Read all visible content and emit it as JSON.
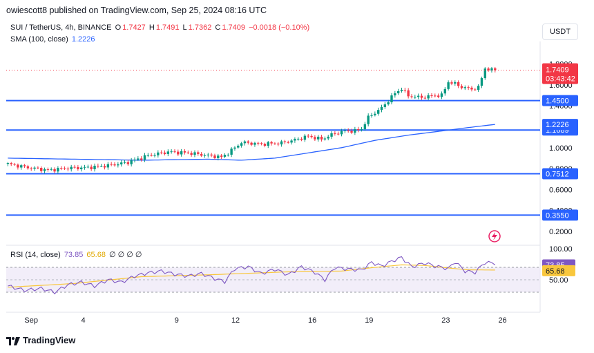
{
  "header": {
    "publisher_line": "owiescott8 published on TradingView.com, Sep 25, 2024 08:16 UTC"
  },
  "legend": {
    "symbol": "SUI / TetherUS, 4h, BINANCE",
    "o_label": "O",
    "o_value": "1.7427",
    "h_label": "H",
    "h_value": "1.7491",
    "l_label": "L",
    "l_value": "1.7362",
    "c_label": "C",
    "c_value": "1.7409",
    "change": "−0.0018 (−0.10%)",
    "sma_label": "SMA (100, close)",
    "sma_value": "1.2226",
    "rsi_label": "RSI (14, close)",
    "rsi_value": "73.85",
    "rsi_ma_value": "65.68",
    "rsi_extra": "∅ ∅ ∅ ∅"
  },
  "currency_button": "USDT",
  "footer": {
    "brand": "TradingView"
  },
  "colors": {
    "up": "#089981",
    "down": "#f23645",
    "level": "#2962ff",
    "sma": "#2962ff",
    "rsi": "#7e57c2",
    "rsi_ma": "#f9c73d",
    "rsi_band": "#ede7f6"
  },
  "chart_data": {
    "type": "candlestick",
    "price_axis": {
      "ticks": [
        "0.2000",
        "0.4000",
        "0.6000",
        "0.8000",
        "1.0000",
        "1.2000",
        "1.4000",
        "1.6000",
        "1.8000"
      ],
      "tick_values": [
        0.2,
        0.4,
        0.6,
        0.8,
        1.0,
        1.2,
        1.4,
        1.6,
        1.8
      ],
      "range": [
        0.1,
        1.95
      ]
    },
    "x_axis": {
      "labels": [
        "Sep",
        "4",
        "9",
        "12",
        "16",
        "19",
        "23",
        "26"
      ],
      "label_bar_index": [
        6,
        23,
        51,
        68,
        91,
        108,
        131,
        148
      ],
      "bars_total": 160
    },
    "horizontal_levels": [
      {
        "value": 1.45,
        "label": "1.4500"
      },
      {
        "value": 1.1689,
        "label": "1.1689"
      },
      {
        "value": 0.7512,
        "label": "0.7512"
      },
      {
        "value": 0.355,
        "label": "0.3550"
      }
    ],
    "price_labels": [
      {
        "value": 1.7409,
        "label": "1.7409",
        "sublabel": "03:43:42",
        "color": "#f23645"
      },
      {
        "value": 1.2226,
        "label": "1.2226",
        "color": "#2962ff"
      }
    ],
    "close_anchors": [
      [
        0,
        0.845
      ],
      [
        6,
        0.81
      ],
      [
        12,
        0.785
      ],
      [
        18,
        0.805
      ],
      [
        24,
        0.81
      ],
      [
        30,
        0.83
      ],
      [
        36,
        0.86
      ],
      [
        42,
        0.925
      ],
      [
        48,
        0.96
      ],
      [
        54,
        0.95
      ],
      [
        60,
        0.925
      ],
      [
        64,
        0.91
      ],
      [
        66,
        0.95
      ],
      [
        70,
        1.05
      ],
      [
        76,
        1.035
      ],
      [
        82,
        1.045
      ],
      [
        86,
        1.075
      ],
      [
        90,
        1.11
      ],
      [
        94,
        1.08
      ],
      [
        97,
        1.125
      ],
      [
        101,
        1.16
      ],
      [
        104,
        1.16
      ],
      [
        106,
        1.18
      ],
      [
        108,
        1.29
      ],
      [
        112,
        1.38
      ],
      [
        116,
        1.52
      ],
      [
        118,
        1.565
      ],
      [
        120,
        1.495
      ],
      [
        124,
        1.48
      ],
      [
        128,
        1.5
      ],
      [
        130,
        1.5
      ],
      [
        132,
        1.63
      ],
      [
        134,
        1.61
      ],
      [
        136,
        1.58
      ],
      [
        139,
        1.56
      ],
      [
        141,
        1.575
      ],
      [
        143,
        1.76
      ],
      [
        145,
        1.74
      ],
      [
        146,
        1.7409
      ]
    ],
    "sma_anchors": [
      [
        0,
        0.9
      ],
      [
        20,
        0.89
      ],
      [
        40,
        0.88
      ],
      [
        60,
        0.89
      ],
      [
        70,
        0.88
      ],
      [
        80,
        0.9
      ],
      [
        90,
        0.95
      ],
      [
        100,
        1.0
      ],
      [
        110,
        1.07
      ],
      [
        120,
        1.12
      ],
      [
        130,
        1.16
      ],
      [
        140,
        1.2
      ],
      [
        146,
        1.2226
      ]
    ],
    "rsi": {
      "range": [
        0,
        100
      ],
      "ticks": [
        "50.00",
        "100.00"
      ],
      "tick_values": [
        50,
        100
      ],
      "band": [
        30,
        70
      ],
      "current": 73.85,
      "ma_current": 65.68,
      "anchors": [
        [
          0,
          40
        ],
        [
          5,
          33
        ],
        [
          10,
          36
        ],
        [
          14,
          30
        ],
        [
          18,
          42
        ],
        [
          22,
          46
        ],
        [
          26,
          40
        ],
        [
          30,
          50
        ],
        [
          34,
          46
        ],
        [
          38,
          56
        ],
        [
          42,
          61
        ],
        [
          46,
          64
        ],
        [
          50,
          59
        ],
        [
          54,
          56
        ],
        [
          58,
          60
        ],
        [
          62,
          52
        ],
        [
          65,
          47
        ],
        [
          68,
          68
        ],
        [
          72,
          71
        ],
        [
          76,
          60
        ],
        [
          80,
          67
        ],
        [
          84,
          58
        ],
        [
          88,
          71
        ],
        [
          92,
          62
        ],
        [
          95,
          50
        ],
        [
          98,
          70
        ],
        [
          102,
          67
        ],
        [
          106,
          66
        ],
        [
          109,
          78
        ],
        [
          112,
          72
        ],
        [
          116,
          82
        ],
        [
          118,
          86
        ],
        [
          121,
          71
        ],
        [
          125,
          77
        ],
        [
          128,
          72
        ],
        [
          132,
          68
        ],
        [
          134,
          79
        ],
        [
          137,
          64
        ],
        [
          140,
          62
        ],
        [
          143,
          78
        ],
        [
          145,
          77
        ],
        [
          146,
          73.85
        ]
      ],
      "ma_anchors": [
        [
          0,
          38
        ],
        [
          20,
          44
        ],
        [
          40,
          55
        ],
        [
          60,
          58
        ],
        [
          70,
          60
        ],
        [
          85,
          63
        ],
        [
          100,
          64
        ],
        [
          110,
          70
        ],
        [
          118,
          74
        ],
        [
          125,
          73
        ],
        [
          132,
          69
        ],
        [
          138,
          66
        ],
        [
          146,
          65.68
        ]
      ]
    }
  }
}
